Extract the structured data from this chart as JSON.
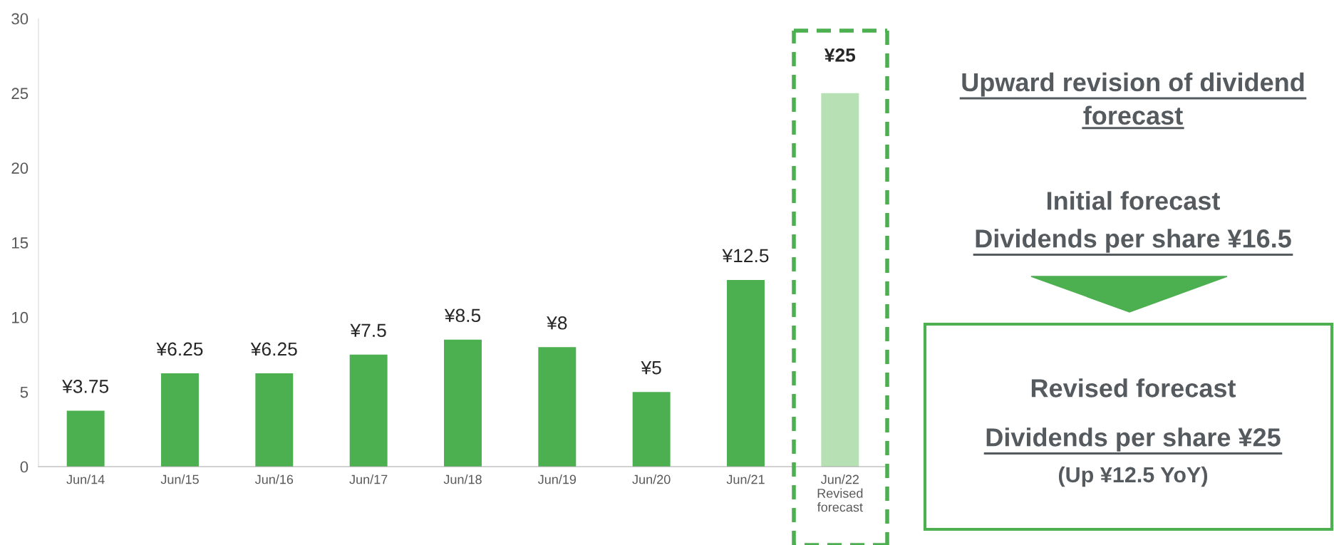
{
  "chart_data": {
    "type": "bar",
    "categories": [
      "Jun/14",
      "Jun/15",
      "Jun/16",
      "Jun/17",
      "Jun/18",
      "Jun/19",
      "Jun/20",
      "Jun/21",
      "Jun/22\nRevised\nforecast"
    ],
    "values": [
      3.75,
      6.25,
      6.25,
      7.5,
      8.5,
      8,
      5,
      12.5,
      25
    ],
    "colors": [
      "#4caf50",
      "#4caf50",
      "#4caf50",
      "#4caf50",
      "#4caf50",
      "#4caf50",
      "#4caf50",
      "#4caf50",
      "#b7e0b4"
    ],
    "value_labels": [
      "¥3.75",
      "¥6.25",
      "¥6.25",
      "¥7.5",
      "¥8.5",
      "¥8",
      "¥5",
      "¥12.5",
      "¥25"
    ],
    "ylim": [
      0,
      30
    ],
    "yticks": [
      0,
      5,
      10,
      15,
      20,
      25,
      30
    ],
    "grid": false,
    "annotations": [
      "Upward revision of dividend\nforecast",
      "Initial forecast",
      "Dividends per share ¥16.5",
      "Revised forecast",
      "Dividends per share ¥25",
      "(Up ¥12.5 YoY)"
    ]
  }
}
